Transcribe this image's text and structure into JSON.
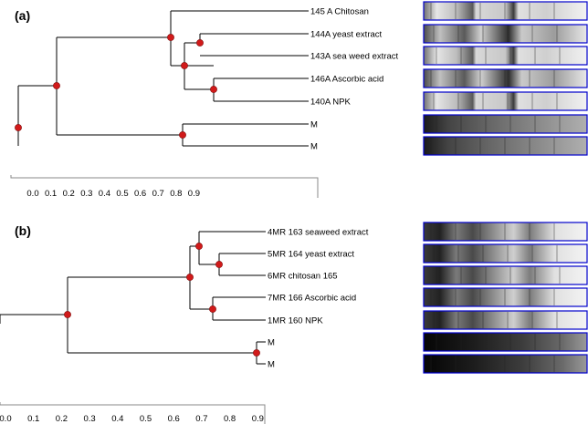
{
  "panels": [
    {
      "label": "(a)",
      "leaves": [
        "145 A Chitosan",
        "144A yeast extract",
        "143A sea weed extract",
        "146A Ascorbic acid",
        "140A NPK",
        "M",
        "M"
      ],
      "axis_ticks": [
        "0.0",
        "0.1",
        "0.2",
        "0.3",
        "0.4",
        "0.5",
        "0.6",
        "0.7",
        "0.8",
        "0.9"
      ]
    },
    {
      "label": "(b)",
      "leaves": [
        "4MR  163  seaweed extract",
        "5MR 164 yeast extract",
        "6MR chitosan 165",
        "7MR 166 Ascorbic acid",
        "1MR 160 NPK",
        "M",
        "M"
      ],
      "axis_ticks": [
        "0.0",
        "0.1",
        "0.2",
        "0.3",
        "0.4",
        "0.5",
        "0.6",
        "0.7",
        "0.8",
        "0.9"
      ]
    }
  ],
  "colors": {
    "node": "#d11a1a",
    "gel_border": "#0000cc"
  }
}
